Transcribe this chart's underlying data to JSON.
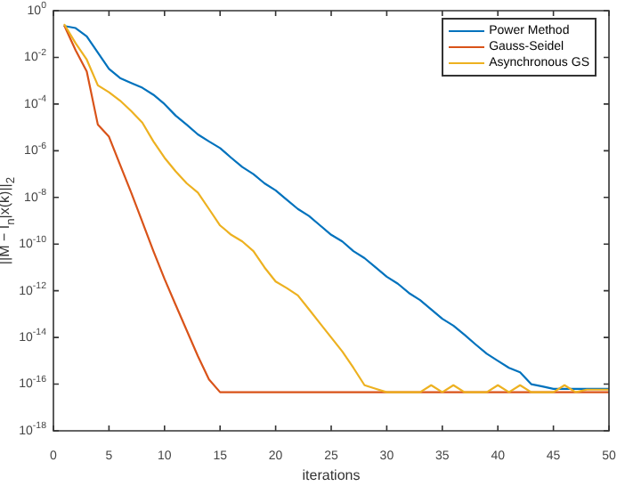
{
  "chart_data": {
    "type": "line",
    "xlabel": "iterations",
    "ylabel": "||M − I$_{n}$|x(k)||$_{2}$",
    "x": [
      1,
      2,
      3,
      4,
      5,
      6,
      7,
      8,
      9,
      10,
      11,
      12,
      13,
      14,
      15,
      16,
      17,
      18,
      19,
      20,
      21,
      22,
      23,
      24,
      25,
      26,
      27,
      28,
      29,
      30,
      31,
      32,
      33,
      34,
      35,
      36,
      37,
      38,
      39,
      40,
      41,
      42,
      43,
      44,
      45,
      46,
      47,
      48,
      49,
      50
    ],
    "series": [
      {
        "name": "Power Method",
        "color": "#0072bd",
        "values": [
          0.22,
          0.18,
          0.08,
          0.016,
          0.0032,
          0.0013,
          0.0008,
          0.0005,
          0.00025,
          0.0001,
          3.2e-05,
          1.3e-05,
          5e-06,
          2.5e-06,
          1.3e-06,
          5e-07,
          2e-07,
          1e-07,
          4e-08,
          2e-08,
          8e-09,
          3.2e-09,
          1.6e-09,
          6.3e-10,
          2.5e-10,
          1.3e-10,
          5e-11,
          2.5e-11,
          1e-11,
          4e-12,
          2e-12,
          8e-13,
          4e-13,
          1.6e-13,
          6.3e-14,
          3.2e-14,
          1.3e-14,
          5e-15,
          2e-15,
          1e-15,
          5e-16,
          3.2e-16,
          1e-16,
          8e-17,
          6.3e-17,
          6.3e-17,
          6.3e-17,
          6.3e-17,
          6.3e-17,
          6.3e-17
        ]
      },
      {
        "name": "Gauss-Seidel",
        "color": "#d95319",
        "values": [
          0.22,
          0.02,
          0.0025,
          1.3e-05,
          4e-06,
          2.5e-07,
          1.6e-08,
          9e-10,
          5e-11,
          3.2e-12,
          2.5e-13,
          2e-14,
          1.6e-15,
          1.6e-16,
          4.5e-17,
          4.5e-17,
          4.5e-17,
          4.5e-17,
          4.5e-17,
          4.5e-17,
          4.5e-17,
          4.5e-17,
          4.5e-17,
          4.5e-17,
          4.5e-17,
          4.5e-17,
          4.5e-17,
          4.5e-17,
          4.5e-17,
          4.5e-17,
          4.5e-17,
          4.5e-17,
          4.5e-17,
          4.5e-17,
          4.5e-17,
          4.5e-17,
          4.5e-17,
          4.5e-17,
          4.5e-17,
          4.5e-17,
          4.5e-17,
          4.5e-17,
          4.5e-17,
          4.5e-17,
          4.5e-17,
          4.5e-17,
          4.5e-17,
          4.5e-17,
          4.5e-17,
          4.5e-17
        ]
      },
      {
        "name": "Asynchronous GS",
        "color": "#edb120",
        "values": [
          0.25,
          0.04,
          0.008,
          0.00063,
          0.00032,
          0.00014,
          5e-05,
          1.6e-05,
          2.5e-06,
          5e-07,
          1.3e-07,
          4e-08,
          1.6e-08,
          3.2e-09,
          6.3e-10,
          2.5e-10,
          1.3e-10,
          5e-11,
          1e-11,
          2.5e-12,
          1.3e-12,
          6.3e-13,
          1.6e-13,
          4e-14,
          1e-14,
          2.5e-15,
          5e-16,
          9e-17,
          6.3e-17,
          4.5e-17,
          4.5e-17,
          4.5e-17,
          4.5e-17,
          9e-17,
          4.5e-17,
          9e-17,
          4.5e-17,
          4.5e-17,
          4.5e-17,
          9e-17,
          4.5e-17,
          9e-17,
          4.5e-17,
          4.5e-17,
          4.5e-17,
          9e-17,
          4.5e-17,
          5.8e-17,
          5.8e-17,
          5.8e-17
        ]
      }
    ],
    "xlim": [
      0,
      50
    ],
    "xticks": [
      0,
      5,
      10,
      15,
      20,
      25,
      30,
      35,
      40,
      45,
      50
    ],
    "ylim": [
      1e-18,
      1
    ],
    "yticks": [
      {
        "value": 1,
        "label": "10$^{0}$"
      },
      {
        "value": 0.01,
        "label": "10$^{-2}$"
      },
      {
        "value": 0.0001,
        "label": "10$^{-4}$"
      },
      {
        "value": 1e-06,
        "label": "10$^{-6}$"
      },
      {
        "value": 1e-08,
        "label": "10$^{-8}$"
      },
      {
        "value": 1e-10,
        "label": "10$^{-10}$"
      },
      {
        "value": 1e-12,
        "label": "10$^{-12}$"
      },
      {
        "value": 1e-14,
        "label": "10$^{-14}$"
      },
      {
        "value": 1e-16,
        "label": "10$^{-16}$"
      },
      {
        "value": 1e-18,
        "label": "10$^{-18}$"
      }
    ],
    "log": "y",
    "legend": "top right",
    "marker": "none",
    "line_style": "solid"
  }
}
